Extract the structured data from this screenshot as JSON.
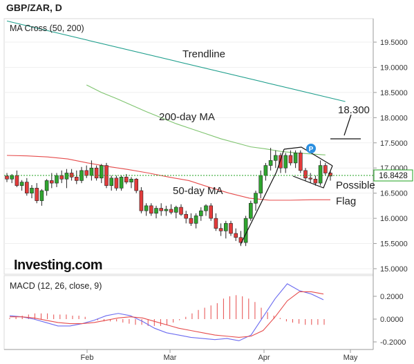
{
  "header": {
    "symbol": "GBP/ZAR, D"
  },
  "chart_data": [
    {
      "type": "candlestick",
      "title": "MA Cross (50, 200)",
      "y_axis": {
        "ticks": [
          "19.5000",
          "19.0000",
          "18.5000",
          "18.0000",
          "17.5000",
          "17.0000",
          "16.5000",
          "16.0000",
          "15.5000",
          "15.0000"
        ],
        "ylim": [
          14.9,
          19.95
        ]
      },
      "x_axis": {
        "labels": [
          "Feb",
          "Mar",
          "Apr",
          "May"
        ]
      },
      "current_price": "16.8428",
      "candles": [
        [
          16.84,
          16.9,
          16.72,
          16.78
        ],
        [
          16.78,
          16.88,
          16.7,
          16.85
        ],
        [
          16.85,
          16.95,
          16.62,
          16.65
        ],
        [
          16.65,
          16.76,
          16.55,
          16.72
        ],
        [
          16.72,
          16.8,
          16.45,
          16.5
        ],
        [
          16.5,
          16.66,
          16.4,
          16.6
        ],
        [
          16.6,
          16.7,
          16.3,
          16.35
        ],
        [
          16.35,
          16.58,
          16.25,
          16.55
        ],
        [
          16.55,
          16.78,
          16.45,
          16.75
        ],
        [
          16.75,
          16.9,
          16.6,
          16.7
        ],
        [
          16.7,
          16.9,
          16.62,
          16.85
        ],
        [
          16.85,
          16.95,
          16.7,
          16.78
        ],
        [
          16.78,
          16.98,
          16.6,
          16.9
        ],
        [
          16.9,
          16.98,
          16.75,
          16.82
        ],
        [
          16.82,
          16.95,
          16.68,
          16.75
        ],
        [
          16.75,
          17.02,
          16.7,
          16.95
        ],
        [
          16.95,
          17.05,
          16.8,
          16.85
        ],
        [
          16.85,
          17.15,
          16.75,
          17.0
        ],
        [
          17.0,
          17.05,
          16.75,
          16.8
        ],
        [
          16.8,
          17.08,
          16.7,
          17.05
        ],
        [
          17.05,
          17.1,
          16.6,
          16.65
        ],
        [
          16.65,
          16.85,
          16.55,
          16.8
        ],
        [
          16.8,
          16.85,
          16.55,
          16.6
        ],
        [
          16.6,
          16.85,
          16.55,
          16.82
        ],
        [
          16.82,
          16.88,
          16.68,
          16.72
        ],
        [
          16.72,
          16.82,
          16.6,
          16.78
        ],
        [
          16.78,
          16.8,
          16.5,
          16.55
        ],
        [
          16.55,
          16.62,
          16.1,
          16.15
        ],
        [
          16.15,
          16.3,
          16.05,
          16.25
        ],
        [
          16.25,
          16.3,
          16.05,
          16.1
        ],
        [
          16.1,
          16.25,
          16.0,
          16.2
        ],
        [
          16.2,
          16.3,
          16.05,
          16.15
        ],
        [
          16.15,
          16.25,
          16.05,
          16.18
        ],
        [
          16.18,
          16.28,
          16.08,
          16.12
        ],
        [
          16.12,
          16.25,
          16.0,
          16.22
        ],
        [
          16.22,
          16.28,
          16.05,
          16.08
        ],
        [
          16.08,
          16.15,
          15.9,
          16.0
        ],
        [
          16.0,
          16.1,
          15.85,
          15.9
        ],
        [
          15.9,
          16.1,
          15.8,
          16.05
        ],
        [
          16.05,
          16.22,
          15.95,
          16.15
        ],
        [
          16.15,
          16.28,
          16.05,
          16.25
        ],
        [
          16.25,
          16.3,
          15.95,
          16.0
        ],
        [
          16.0,
          16.1,
          15.75,
          15.8
        ],
        [
          15.8,
          15.9,
          15.65,
          15.75
        ],
        [
          15.75,
          15.95,
          15.6,
          15.9
        ],
        [
          15.9,
          15.95,
          15.65,
          15.7
        ],
        [
          15.7,
          15.8,
          15.55,
          15.62
        ],
        [
          15.62,
          15.75,
          15.45,
          15.52
        ],
        [
          15.52,
          16.05,
          15.45,
          16.0
        ],
        [
          16.0,
          16.35,
          15.95,
          16.3
        ],
        [
          16.3,
          16.55,
          16.15,
          16.5
        ],
        [
          16.5,
          16.95,
          16.4,
          16.85
        ],
        [
          16.85,
          17.1,
          16.75,
          17.05
        ],
        [
          17.05,
          17.4,
          16.95,
          17.15
        ],
        [
          17.15,
          17.35,
          17.0,
          17.25
        ],
        [
          17.25,
          17.3,
          16.9,
          17.0
        ],
        [
          17.0,
          17.3,
          16.9,
          17.25
        ],
        [
          17.25,
          17.35,
          17.05,
          17.1
        ],
        [
          17.1,
          17.35,
          17.0,
          17.3
        ],
        [
          17.3,
          17.35,
          16.9,
          16.95
        ],
        [
          16.95,
          17.0,
          16.75,
          16.8
        ],
        [
          16.8,
          16.9,
          16.7,
          16.78
        ],
        [
          16.78,
          16.85,
          16.65,
          16.7
        ],
        [
          16.7,
          17.15,
          16.65,
          17.05
        ],
        [
          17.05,
          17.1,
          16.85,
          16.9
        ],
        [
          16.9,
          16.95,
          16.75,
          16.84
        ]
      ],
      "series": [
        {
          "name": "200-day MA",
          "color": "#7dc36d",
          "start_index": 26,
          "values": [
            18.65,
            18.5,
            18.38,
            18.25,
            18.12,
            18.0,
            17.88,
            17.78,
            17.68,
            17.58,
            17.5,
            17.42,
            17.38,
            17.33,
            17.3,
            17.28,
            17.26
          ]
        },
        {
          "name": "50-day MA",
          "color": "#e64b4b",
          "start_index": 0,
          "values": [
            17.25,
            17.24,
            17.22,
            17.18,
            17.1,
            17.03,
            16.97,
            16.9,
            16.82,
            16.75,
            16.62,
            16.5,
            16.4,
            16.36,
            16.36,
            16.37,
            16.37
          ]
        },
        {
          "name": "Trendline",
          "color": "#1e9e8c",
          "points": [
            [
              0,
              19.92
            ],
            [
              68,
              18.32
            ]
          ]
        }
      ],
      "annotations": [
        "Trendline",
        "200-day MA",
        "50-day MA",
        "18.300",
        "Possible",
        "Flag"
      ],
      "brand": "Investing.com"
    },
    {
      "type": "line",
      "title": "MACD (12, 26, close, 9)",
      "y_axis": {
        "ticks": [
          "0.2000",
          "0.0000",
          "-0.2000"
        ],
        "ylim": [
          -0.25,
          0.35
        ]
      },
      "series": [
        {
          "name": "MACD",
          "color": "#6a6af0",
          "values": [
            0.03,
            0.02,
            0.0,
            -0.03,
            -0.06,
            -0.06,
            -0.04,
            -0.01,
            0.03,
            0.05,
            0.03,
            -0.02,
            -0.08,
            -0.12,
            -0.14,
            -0.16,
            -0.17,
            -0.18,
            -0.17,
            -0.19,
            -0.14,
            0.02,
            0.18,
            0.31,
            0.25,
            0.22,
            0.17
          ]
        },
        {
          "name": "Signal",
          "color": "#e64b4b",
          "values": [
            0.02,
            0.02,
            0.01,
            -0.01,
            -0.03,
            -0.04,
            -0.04,
            -0.03,
            -0.01,
            0.01,
            0.02,
            0.01,
            -0.02,
            -0.05,
            -0.08,
            -0.1,
            -0.12,
            -0.14,
            -0.15,
            -0.16,
            -0.15,
            -0.1,
            0.02,
            0.16,
            0.24,
            0.24,
            0.22
          ]
        },
        {
          "name": "Histogram",
          "color": "#e64b4b",
          "values": [
            0.01,
            0.02,
            0.03,
            0.04,
            0.05,
            0.05,
            0.05,
            0.04,
            0.04,
            0.04,
            0.03,
            0.03,
            0.02,
            0.0,
            -0.01,
            -0.02,
            -0.02,
            -0.02,
            -0.03,
            -0.04,
            -0.05,
            -0.05,
            -0.06,
            -0.06,
            -0.06,
            -0.05,
            -0.03,
            -0.01,
            0.02,
            0.05,
            0.08,
            0.1,
            0.12,
            0.14,
            0.18,
            0.2,
            0.21,
            0.2,
            0.18,
            0.15,
            0.1,
            0.06,
            0.03,
            0.01,
            -0.02,
            -0.03,
            -0.04,
            -0.05,
            -0.05,
            -0.05,
            -0.05
          ]
        }
      ]
    }
  ]
}
